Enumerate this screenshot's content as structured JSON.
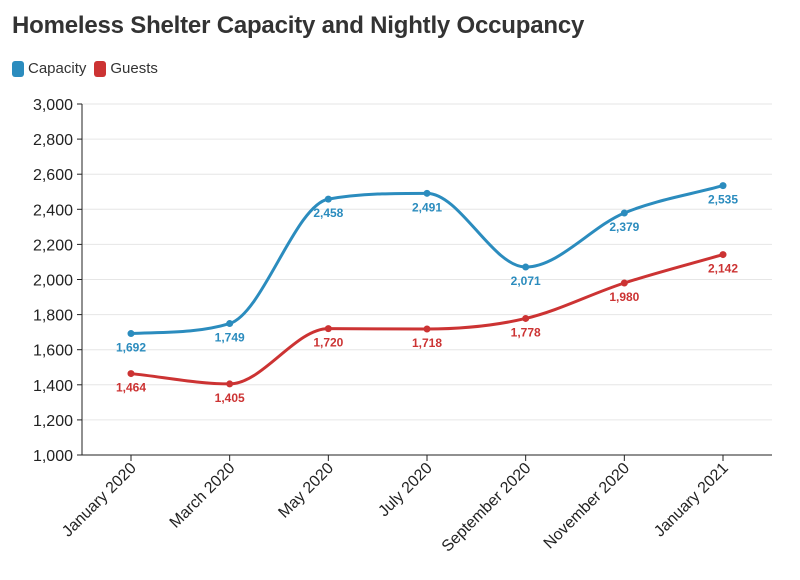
{
  "title": "Homeless Shelter Capacity and Nightly Occupancy",
  "colors": {
    "capacity": "#2b8cbe",
    "guests": "#cc3333"
  },
  "chart_data": {
    "type": "line",
    "title": "Homeless Shelter Capacity and Nightly Occupancy",
    "xlabel": "",
    "ylabel": "",
    "categories": [
      "January 2020",
      "March 2020",
      "May 2020",
      "July 2020",
      "September 2020",
      "November 2020",
      "January 2021"
    ],
    "series": [
      {
        "name": "Capacity",
        "color": "#2b8cbe",
        "values": [
          1692,
          1749,
          2458,
          2491,
          2071,
          2379,
          2535
        ]
      },
      {
        "name": "Guests",
        "color": "#cc3333",
        "values": [
          1464,
          1405,
          1720,
          1718,
          1778,
          1980,
          2142
        ]
      }
    ],
    "ylim": [
      1000,
      3000
    ],
    "yticks": [
      "1,000",
      "1,200",
      "1,400",
      "1,600",
      "1,800",
      "2,000",
      "2,200",
      "2,400",
      "2,600",
      "2,800",
      "3,000"
    ],
    "value_labels": [
      [
        "1,692",
        "1,749",
        "2,458",
        "2,491",
        "2,071",
        "2,379",
        "2,535"
      ],
      [
        "1,464",
        "1,405",
        "1,720",
        "1,718",
        "1,778",
        "1,980",
        "2,142"
      ]
    ],
    "grid": true,
    "legend": "top-left",
    "smooth": true
  }
}
